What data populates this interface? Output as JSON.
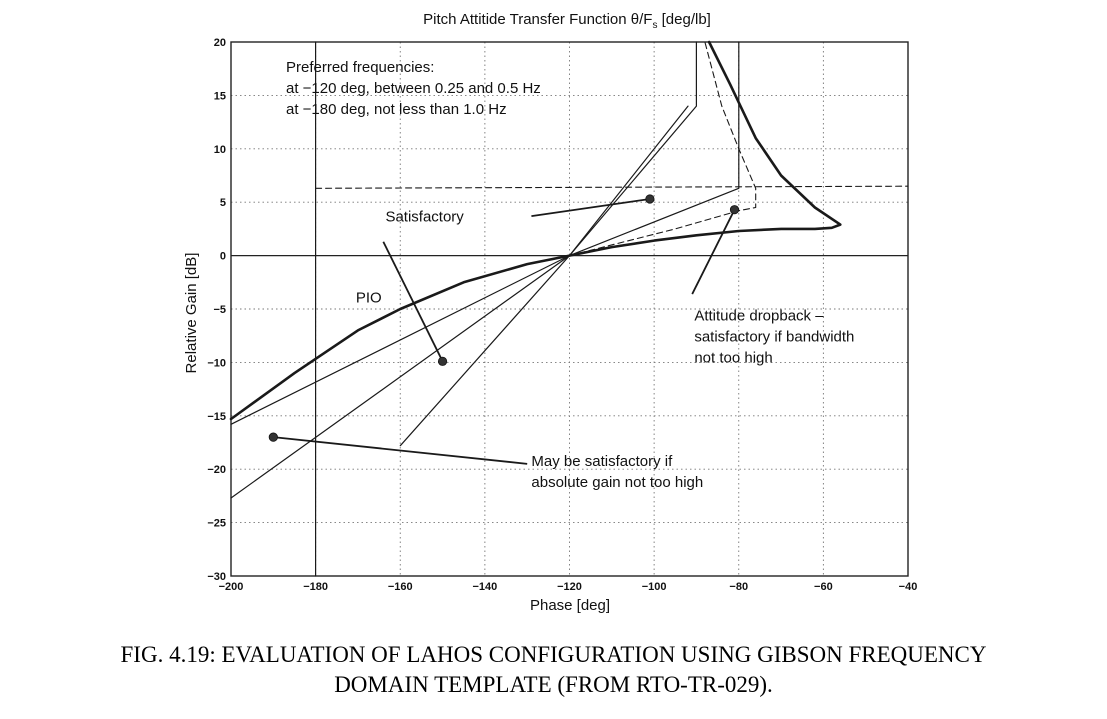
{
  "chart_data": {
    "type": "line",
    "title": "Pitch Attitide Transfer Function θ/F",
    "title_subscript": "s",
    "title_units": " [deg/lb]",
    "xlabel": "Phase [deg]",
    "ylabel": "Relative Gain [dB]",
    "xlim": [
      -200,
      -40
    ],
    "ylim": [
      -30,
      20
    ],
    "xticks": [
      -200,
      -180,
      -160,
      -140,
      -120,
      -100,
      -80,
      -60,
      -40
    ],
    "yticks": [
      -30,
      -25,
      -20,
      -15,
      -10,
      -5,
      0,
      5,
      10,
      15,
      20
    ],
    "grid": "dotted",
    "series": [
      {
        "style": "thick",
        "points": [
          [
            -200,
            -15.3
          ],
          [
            -185,
            -11
          ],
          [
            -170,
            -7
          ],
          [
            -160,
            -5
          ],
          [
            -145,
            -2.5
          ],
          [
            -130,
            -0.8
          ],
          [
            -120,
            0
          ],
          [
            -110,
            0.8
          ],
          [
            -100,
            1.4
          ],
          [
            -90,
            1.9
          ],
          [
            -80,
            2.3
          ],
          [
            -70,
            2.5
          ],
          [
            -62,
            2.5
          ],
          [
            -58,
            2.6
          ],
          [
            -56,
            2.9
          ],
          [
            -62,
            4.5
          ],
          [
            -70,
            7.5
          ],
          [
            -76,
            11
          ],
          [
            -82,
            16
          ],
          [
            -87,
            20
          ]
        ]
      },
      {
        "style": "thin",
        "points": [
          [
            -200,
            -15.8
          ],
          [
            -120,
            0
          ],
          [
            -80,
            6.3
          ],
          [
            -80,
            20
          ]
        ]
      },
      {
        "style": "thin",
        "points": [
          [
            -200,
            -22.7
          ],
          [
            -120,
            0
          ],
          [
            -90,
            14
          ],
          [
            -90,
            20
          ]
        ]
      },
      {
        "style": "thin",
        "points": [
          [
            -160,
            -17.8
          ],
          [
            -120,
            0
          ],
          [
            -92,
            14
          ]
        ]
      },
      {
        "style": "thin",
        "points": [
          [
            -180,
            -30
          ],
          [
            -180,
            20
          ]
        ]
      },
      {
        "style": "dashed",
        "points": [
          [
            -120,
            0
          ],
          [
            -95,
            2.5
          ],
          [
            -80,
            4.2
          ],
          [
            -76,
            4.5
          ],
          [
            -76,
            6.3
          ],
          [
            -80,
            10
          ],
          [
            -84,
            14
          ],
          [
            -88,
            20
          ]
        ]
      },
      {
        "style": "dashed",
        "points": [
          [
            -180,
            6.3
          ],
          [
            -40,
            6.5
          ]
        ]
      }
    ],
    "markers": [
      {
        "x": -101,
        "y": 5.3
      },
      {
        "x": -81,
        "y": 4.3
      },
      {
        "x": -150,
        "y": -9.9
      },
      {
        "x": -190,
        "y": -17
      }
    ],
    "annotations": [
      {
        "id": "preferred",
        "lines": [
          "Preferred frequencies:",
          "at −120 deg, between 0.25 and 0.5 Hz",
          "at −180 deg, not less than 1.0 Hz"
        ],
        "x": -187,
        "y": 17.2
      },
      {
        "id": "satisfactory",
        "lines": [
          "Satisfactory"
        ],
        "x": -163.5,
        "y": 3.2
      },
      {
        "id": "pio",
        "lines": [
          "PIO"
        ],
        "x": -170.5,
        "y": -4.4
      },
      {
        "id": "dropback",
        "lines": [
          "Attitude dropback –",
          "satisfactory if bandwidth",
          "not too high"
        ],
        "x": -90.5,
        "y": -6.1
      },
      {
        "id": "maybe",
        "lines": [
          "May be satisfactory if",
          "absolute gain not too high"
        ],
        "x": -129,
        "y": -19.7
      }
    ],
    "leaders": [
      {
        "from": [
          -129,
          3.7
        ],
        "to": [
          -101,
          5.3
        ]
      },
      {
        "from": [
          -164,
          1.3
        ],
        "to": [
          -150,
          -9.9
        ]
      },
      {
        "from": [
          -91,
          -3.6
        ],
        "to": [
          -81,
          4.3
        ]
      },
      {
        "from": [
          -130,
          -19.5
        ],
        "to": [
          -190,
          -17
        ]
      }
    ]
  },
  "caption": {
    "line1": "FIG. 4.19: EVALUATION OF LAHOS CONFIGURATION USING GIBSON FREQUENCY",
    "line2": "DOMAIN TEMPLATE (FROM RTO-TR-029)."
  }
}
